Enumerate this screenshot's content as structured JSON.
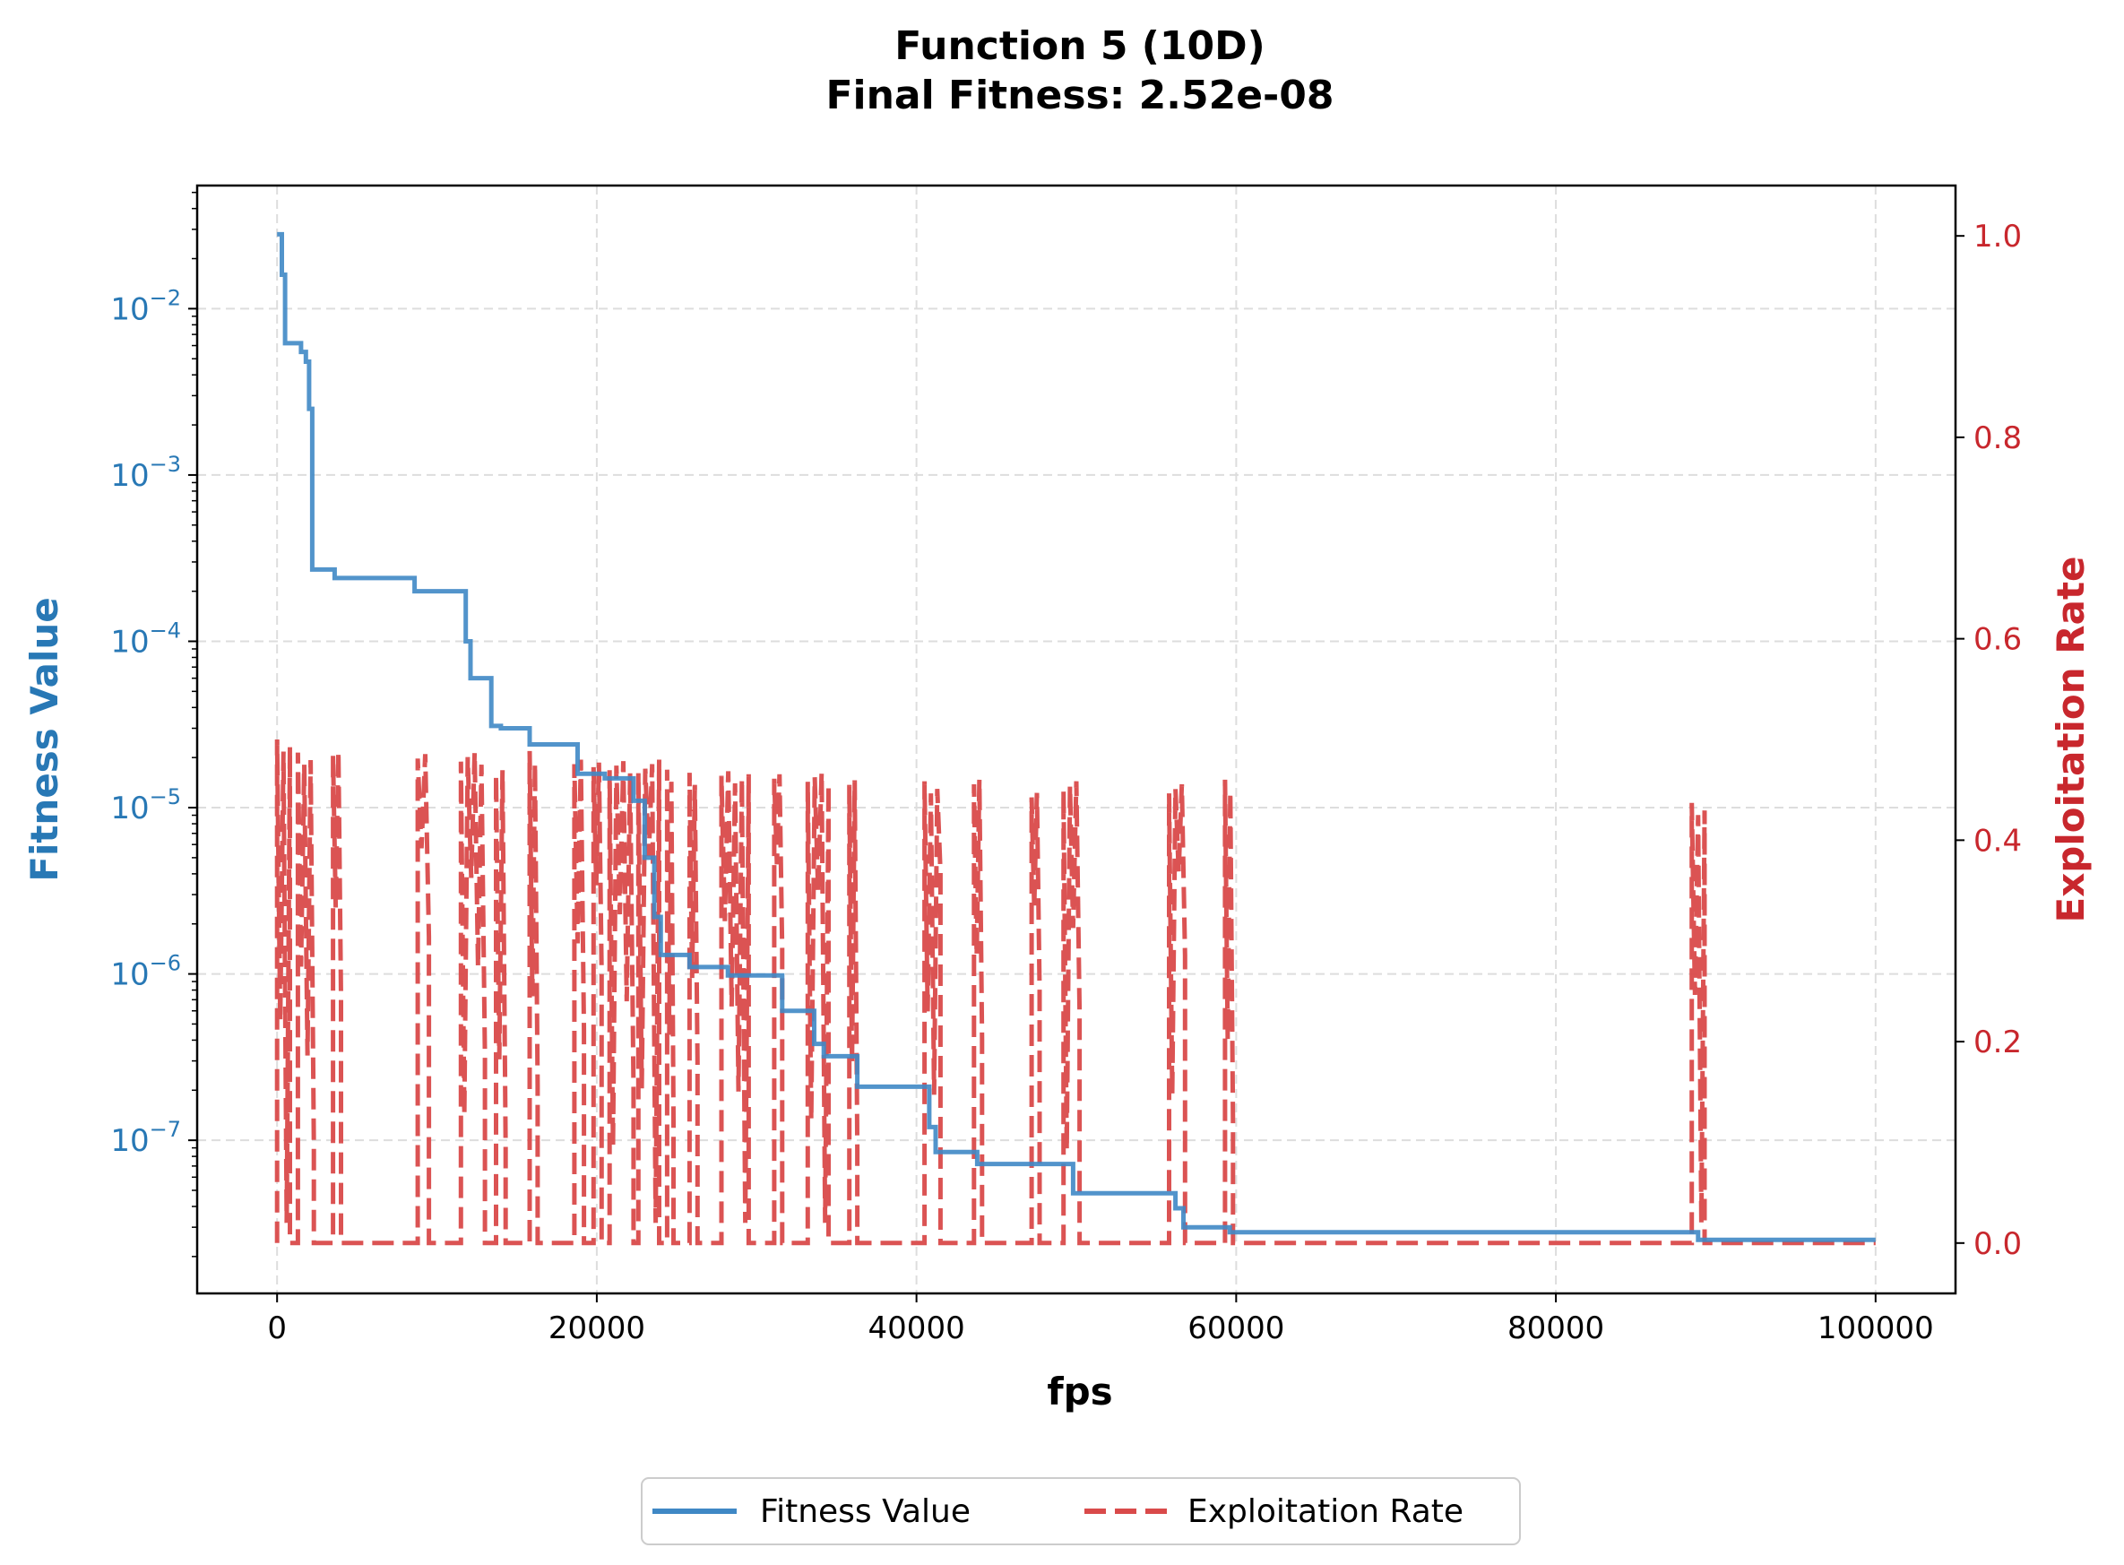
{
  "chart_data": {
    "type": "line",
    "title": "Function 5 (10D)",
    "subtitle": "Final Fitness: 2.52e-08",
    "xlabel": "fps",
    "ylabel_left": "Fitness Value",
    "ylabel_right": "Exploitation Rate",
    "xlim": [
      -5000,
      105000
    ],
    "x_ticks": [
      0,
      20000,
      40000,
      60000,
      80000,
      100000
    ],
    "x_tick_labels": [
      "0",
      "20000",
      "40000",
      "60000",
      "80000",
      "100000"
    ],
    "left_axis": {
      "scale": "log",
      "ylim": [
        1.2e-08,
        0.055
      ],
      "tick_exponents": [
        "−7",
        "−6",
        "−5",
        "−4",
        "−3",
        "−2"
      ],
      "tick_values": [
        1e-07,
        1e-06,
        1e-05,
        0.0001,
        0.001,
        0.01
      ],
      "color": "#2878b5"
    },
    "right_axis": {
      "scale": "linear",
      "ylim": [
        -0.05,
        1.05
      ],
      "ticks": [
        0.0,
        0.2,
        0.4,
        0.6,
        0.8,
        1.0
      ],
      "tick_labels": [
        "0.0",
        "0.2",
        "0.4",
        "0.6",
        "0.8",
        "1.0"
      ],
      "color": "#c8272d"
    },
    "grid": true,
    "legend_position": "bottom-center",
    "series": [
      {
        "name": "Fitness Value",
        "axis": "left",
        "style": "solid",
        "color": "#3f88c5",
        "points": [
          [
            0,
            0.028
          ],
          [
            300,
            0.028
          ],
          [
            300,
            0.016
          ],
          [
            500,
            0.016
          ],
          [
            500,
            0.0062
          ],
          [
            1500,
            0.0062
          ],
          [
            1500,
            0.0055
          ],
          [
            1800,
            0.0055
          ],
          [
            1800,
            0.0048
          ],
          [
            2000,
            0.0048
          ],
          [
            2000,
            0.0025
          ],
          [
            2200,
            0.0025
          ],
          [
            2200,
            0.00027
          ],
          [
            3600,
            0.00027
          ],
          [
            3600,
            0.00024
          ],
          [
            8600,
            0.00024
          ],
          [
            8600,
            0.0002
          ],
          [
            11800,
            0.0002
          ],
          [
            11800,
            0.0001
          ],
          [
            12100,
            0.0001
          ],
          [
            12100,
            6e-05
          ],
          [
            13400,
            6e-05
          ],
          [
            13400,
            3.1e-05
          ],
          [
            14000,
            3.1e-05
          ],
          [
            14000,
            3e-05
          ],
          [
            15800,
            3e-05
          ],
          [
            15800,
            2.4e-05
          ],
          [
            18800,
            2.4e-05
          ],
          [
            18800,
            1.6e-05
          ],
          [
            20500,
            1.6e-05
          ],
          [
            20500,
            1.5e-05
          ],
          [
            22300,
            1.5e-05
          ],
          [
            22300,
            1.1e-05
          ],
          [
            23000,
            1.1e-05
          ],
          [
            23000,
            5e-06
          ],
          [
            23600,
            5e-06
          ],
          [
            23600,
            2.2e-06
          ],
          [
            24000,
            2.2e-06
          ],
          [
            24000,
            1.3e-06
          ],
          [
            25800,
            1.3e-06
          ],
          [
            25800,
            1.1e-06
          ],
          [
            28200,
            1.1e-06
          ],
          [
            28200,
            9.8e-07
          ],
          [
            31600,
            9.8e-07
          ],
          [
            31600,
            6e-07
          ],
          [
            33600,
            6e-07
          ],
          [
            33600,
            3.8e-07
          ],
          [
            34200,
            3.8e-07
          ],
          [
            34200,
            3.2e-07
          ],
          [
            36300,
            3.2e-07
          ],
          [
            36300,
            2.1e-07
          ],
          [
            40800,
            2.1e-07
          ],
          [
            40800,
            1.2e-07
          ],
          [
            41200,
            1.2e-07
          ],
          [
            41200,
            8.5e-08
          ],
          [
            43800,
            8.5e-08
          ],
          [
            43800,
            7.2e-08
          ],
          [
            49800,
            7.2e-08
          ],
          [
            49800,
            4.8e-08
          ],
          [
            56200,
            4.8e-08
          ],
          [
            56200,
            3.9e-08
          ],
          [
            56700,
            3.9e-08
          ],
          [
            56700,
            3e-08
          ],
          [
            59600,
            3e-08
          ],
          [
            59600,
            2.8e-08
          ],
          [
            88900,
            2.8e-08
          ],
          [
            88900,
            2.52e-08
          ],
          [
            100000,
            2.52e-08
          ]
        ]
      },
      {
        "name": "Exploitation Rate",
        "axis": "right",
        "style": "dashed",
        "color": "#d94a4a",
        "active_bursts": [
          [
            0,
            800,
            0.5
          ],
          [
            1300,
            2300,
            0.49
          ],
          [
            3500,
            4000,
            0.49
          ],
          [
            8800,
            9500,
            0.49
          ],
          [
            11500,
            13000,
            0.49
          ],
          [
            13700,
            14300,
            0.48
          ],
          [
            15800,
            16300,
            0.49
          ],
          [
            18600,
            19200,
            0.48
          ],
          [
            19800,
            20300,
            0.48
          ],
          [
            20800,
            22300,
            0.48
          ],
          [
            22600,
            23900,
            0.48
          ],
          [
            24400,
            24800,
            0.47
          ],
          [
            25800,
            26300,
            0.47
          ],
          [
            27800,
            29500,
            0.47
          ],
          [
            31100,
            31600,
            0.47
          ],
          [
            33200,
            34500,
            0.47
          ],
          [
            35800,
            36300,
            0.47
          ],
          [
            40500,
            41500,
            0.46
          ],
          [
            43600,
            44100,
            0.46
          ],
          [
            47200,
            47700,
            0.45
          ],
          [
            49200,
            50200,
            0.46
          ],
          [
            55800,
            56800,
            0.46
          ],
          [
            59300,
            59800,
            0.46
          ],
          [
            88500,
            89300,
            0.44
          ]
        ]
      }
    ]
  }
}
